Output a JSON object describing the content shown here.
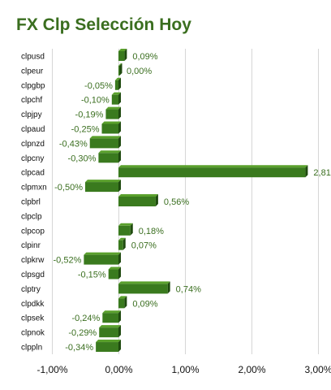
{
  "chart_data": {
    "type": "bar",
    "orientation": "horizontal",
    "title": "FX Clp Selección Hoy",
    "categories": [
      "clpusd",
      "clpeur",
      "clpgbp",
      "clpchf",
      "clpjpy",
      "clpaud",
      "clpnzd",
      "clpcny",
      "clpcad",
      "clpmxn",
      "clpbrl",
      "clpclp",
      "clpcop",
      "clpinr",
      "clpkrw",
      "clpsgd",
      "clptry",
      "clpdkk",
      "clpsek",
      "clpnok",
      "clppln"
    ],
    "values": [
      0.09,
      0.0,
      -0.05,
      -0.1,
      -0.19,
      -0.25,
      -0.43,
      -0.3,
      2.81,
      -0.5,
      0.56,
      null,
      0.18,
      0.07,
      -0.52,
      -0.15,
      0.74,
      0.09,
      -0.24,
      -0.29,
      -0.34
    ],
    "value_labels": [
      "0,09%",
      "0,00%",
      "-0,05%",
      "-0,10%",
      "-0,19%",
      "-0,25%",
      "-0,43%",
      "-0,30%",
      "2,81%",
      "-0,50%",
      "0,56%",
      "",
      "0,18%",
      "0,07%",
      "-0,52%",
      "-0,15%",
      "0,74%",
      "0,09%",
      "-0,24%",
      "-0,29%",
      "-0,34%"
    ],
    "xlim": [
      -1,
      3
    ],
    "x_ticks": [
      -1,
      0,
      1,
      2,
      3
    ],
    "x_tick_labels": [
      "-1,00%",
      "0,00%",
      "1,00%",
      "2,00%",
      "3,00%"
    ],
    "grid": true,
    "colors": {
      "bar": "#3a7a1e",
      "bar_top": "#5aa02c",
      "bar_side": "#1f4a0f",
      "label": "#3a6e1f"
    }
  }
}
